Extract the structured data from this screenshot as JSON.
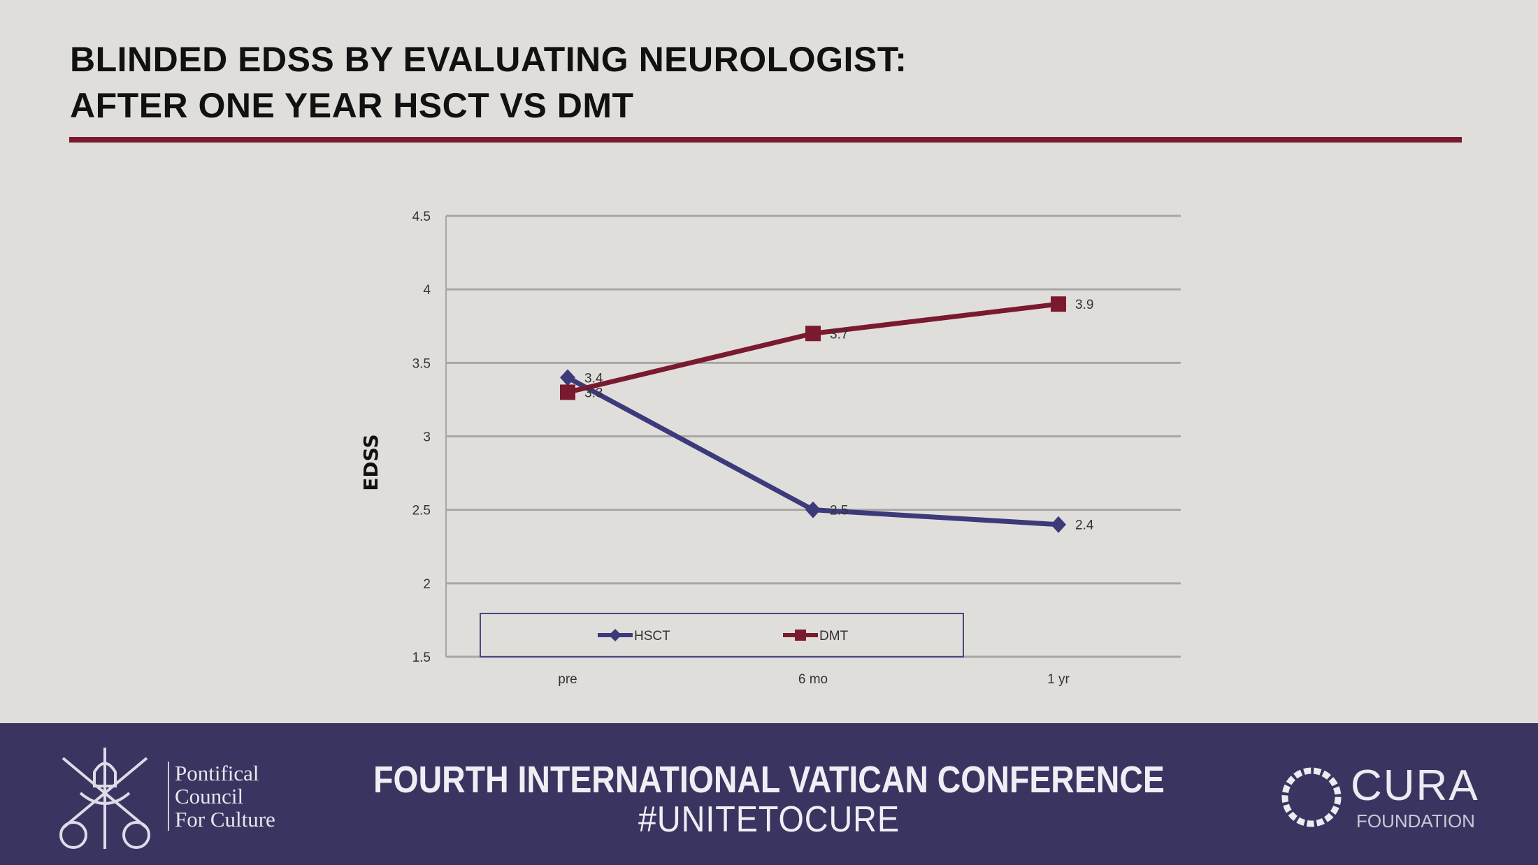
{
  "slide": {
    "title_line1": "BLINDED EDSS BY EVALUATING NEUROLOGIST:",
    "title_line2": "AFTER ONE YEAR HSCT VS DMT",
    "accent_color": "#7a1a2e"
  },
  "footer": {
    "conference": "FOURTH INTERNATIONAL VATICAN CONFERENCE",
    "hashtag": "#UNITETOCURE",
    "left_logo_text": [
      "Pontifical",
      "Council",
      "For Culture"
    ],
    "right_logo_text": "CURA",
    "right_logo_sub": "FOUNDATION",
    "background": "#3a3560"
  },
  "chart_data": {
    "type": "line",
    "title": "",
    "xlabel": "",
    "ylabel": "EDSS",
    "categories": [
      "pre",
      "6 mo",
      "1 yr"
    ],
    "ylim": [
      1.5,
      4.5
    ],
    "yticks": [
      "1.5",
      "2",
      "2.5",
      "3",
      "3.5",
      "4",
      "4.5"
    ],
    "grid": true,
    "legend": "bottom-left",
    "series": [
      {
        "name": "HSCT",
        "values": [
          3.4,
          2.5,
          2.4
        ],
        "labels": [
          "3.4",
          "2.5",
          "2.4"
        ],
        "color": "#3c3a7a",
        "marker": "diamond"
      },
      {
        "name": "DMT",
        "values": [
          3.3,
          3.7,
          3.9
        ],
        "labels": [
          "3.3",
          "3.7",
          "3.9"
        ],
        "color": "#7a1a2e",
        "marker": "square"
      }
    ]
  }
}
